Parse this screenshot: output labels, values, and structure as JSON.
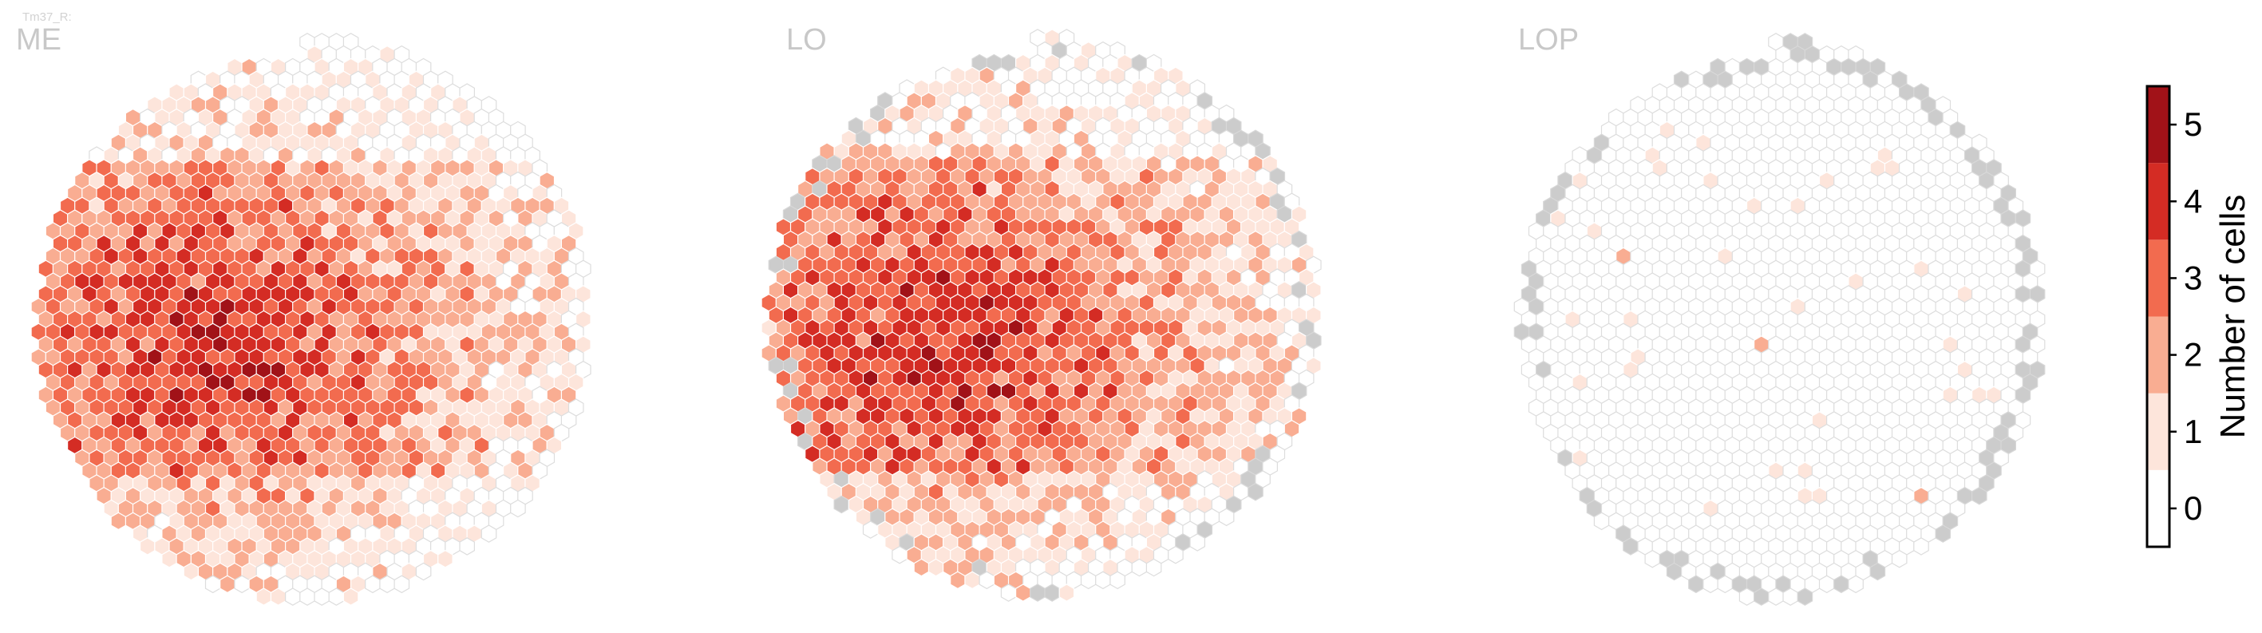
{
  "chart_data": [
    {
      "type": "heatmap",
      "subtype": "hexagonal column map",
      "neuron_type_label": "Tm37_R",
      "title": "ME",
      "color_scale": "Reds, discrete",
      "value_range": [
        0,
        5
      ],
      "border_color_no_column": "#cccccc",
      "distribution_note": "most columns 1-4 cells; highest counts (4-5) concentrated in left-center; lower counts at top and bottom margins"
    },
    {
      "type": "heatmap",
      "subtype": "hexagonal column map",
      "title": "LO",
      "color_scale": "Reds, discrete",
      "value_range": [
        0,
        5
      ],
      "distribution_note": "most columns 1-4 cells; densest (4-5) at left-center; a few grey (absent) columns along the rim"
    },
    {
      "type": "heatmap",
      "subtype": "hexagonal column map",
      "title": "LOP",
      "color_scale": "Reds, discrete",
      "value_range": [
        0,
        5
      ],
      "distribution_note": "nearly all columns 0; about 20 isolated columns with 1 cell and one with 2; grey (absent) columns ring the boundary"
    }
  ],
  "colorbar": {
    "label": "Number of cells",
    "ticks": [
      "0",
      "1",
      "2",
      "3",
      "4",
      "5"
    ],
    "bins": [
      {
        "value": 0,
        "color": "#ffffff"
      },
      {
        "value": 1,
        "color": "#fde5db"
      },
      {
        "value": 2,
        "color": "#f9ad92"
      },
      {
        "value": 3,
        "color": "#f26b4f"
      },
      {
        "value": 4,
        "color": "#d42c24"
      },
      {
        "value": 5,
        "color": "#a11218"
      }
    ],
    "absent_color": "#cccccc"
  },
  "labels": {
    "tiny": "Tm37_R:",
    "panel1": "ME",
    "panel2": "LO",
    "panel3": "LOP"
  }
}
